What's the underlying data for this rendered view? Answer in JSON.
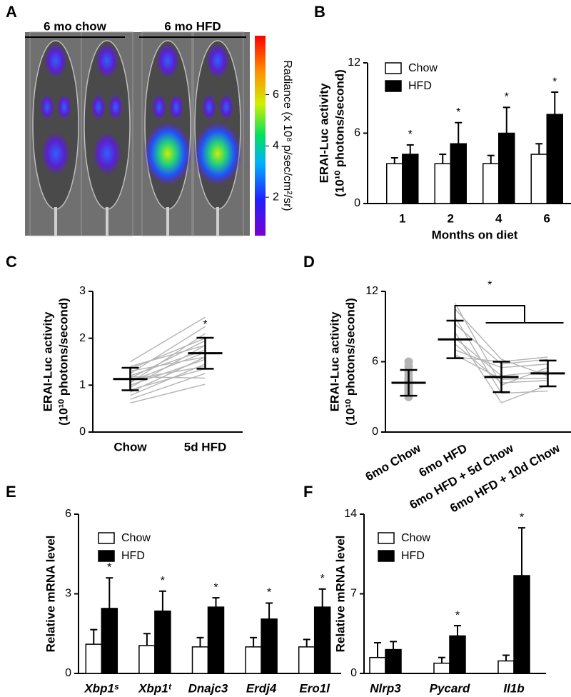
{
  "chart_data": [
    {
      "type": "image",
      "panel": "A",
      "labels": [
        "6 mo chow",
        "6 mo HFD"
      ],
      "colorbar": {
        "label": "Radiance (x 10⁸ p/sec/cm²/sr)",
        "lim": [
          0.5,
          8.3
        ],
        "ticks": [
          2,
          4,
          6
        ]
      }
    },
    {
      "type": "bar",
      "panel": "B",
      "ylabel": [
        "ERAI-Luc activity",
        "(10¹⁰ photons/second)"
      ],
      "xlabel": "Months on diet",
      "categories": [
        "1",
        "2",
        "4",
        "6"
      ],
      "series": [
        {
          "name": "Chow",
          "color": "#ffffff",
          "values": [
            3.4,
            3.4,
            3.4,
            4.2
          ],
          "errors": [
            0.5,
            0.8,
            0.7,
            0.9
          ]
        },
        {
          "name": "HFD",
          "color": "#000000",
          "values": [
            4.2,
            5.1,
            6.0,
            7.6
          ],
          "errors": [
            0.8,
            1.8,
            2.2,
            1.9
          ],
          "markers": [
            "*",
            "*",
            "*",
            "*"
          ]
        }
      ],
      "ylim": [
        0,
        12
      ],
      "yticks": [
        0,
        6,
        12
      ],
      "legend": "upper left",
      "italic_categories": false
    },
    {
      "type": "paired",
      "panel": "C",
      "ylabel": [
        "ERAI-Luc activity",
        "(10¹⁰ photons/second)"
      ],
      "categories": [
        "Chow",
        "5d HFD"
      ],
      "mean": [
        1.13,
        1.68
      ],
      "sd": [
        0.24,
        0.33
      ],
      "color": "#b4b4b4",
      "individuals": [
        [
          0.62,
          1.02
        ],
        [
          0.7,
          1.25
        ],
        [
          0.78,
          1.45
        ],
        [
          0.85,
          1.6
        ],
        [
          0.9,
          1.35
        ],
        [
          0.95,
          1.85
        ],
        [
          1.0,
          1.55
        ],
        [
          1.05,
          2.1
        ],
        [
          1.08,
          1.7
        ],
        [
          1.12,
          1.4
        ],
        [
          1.15,
          1.95
        ],
        [
          1.2,
          1.75
        ],
        [
          1.25,
          2.25
        ],
        [
          1.3,
          1.6
        ],
        [
          1.35,
          2.0
        ],
        [
          1.4,
          1.85
        ],
        [
          1.5,
          2.45
        ],
        [
          1.18,
          1.15
        ]
      ],
      "markers": [
        null,
        "*"
      ],
      "ylim": [
        0,
        3
      ],
      "yticks": [
        0,
        1,
        2,
        3
      ]
    },
    {
      "type": "paired",
      "panel": "D",
      "ylabel": [
        "ERAI-Luc activity",
        "(10¹⁰ photons/second)"
      ],
      "categories": [
        "6mo Chow",
        "6mo HFD",
        "6mo HFD + 5d Chow",
        "6mo HFD + 10d Chow"
      ],
      "mean": [
        4.2,
        7.9,
        4.7,
        5.0
      ],
      "sd": [
        1.1,
        1.6,
        1.3,
        1.1
      ],
      "color": "#b4b4b4",
      "individuals": [
        [
          3.0,
          null,
          null,
          null
        ],
        [
          3.2,
          null,
          null,
          null
        ],
        [
          3.3,
          null,
          null,
          null
        ],
        [
          3.5,
          null,
          null,
          null
        ],
        [
          3.6,
          null,
          null,
          null
        ],
        [
          3.8,
          null,
          null,
          null
        ],
        [
          4.0,
          null,
          null,
          null
        ],
        [
          4.2,
          null,
          null,
          null
        ],
        [
          4.4,
          null,
          null,
          null
        ],
        [
          4.6,
          null,
          null,
          null
        ],
        [
          4.9,
          null,
          null,
          null
        ],
        [
          5.2,
          null,
          null,
          null
        ],
        [
          5.6,
          null,
          null,
          null
        ],
        [
          6.0,
          null,
          null,
          null
        ],
        [
          null,
          11.0,
          4.0,
          5.5
        ],
        [
          null,
          10.5,
          6.2,
          4.8
        ],
        [
          null,
          9.8,
          3.3,
          3.5
        ],
        [
          null,
          9.2,
          5.8,
          6.2
        ],
        [
          null,
          8.5,
          2.5,
          4.0
        ],
        [
          null,
          8.0,
          4.8,
          5.2
        ],
        [
          null,
          7.5,
          4.2,
          4.4
        ],
        [
          null,
          7.0,
          5.5,
          5.8
        ],
        [
          null,
          6.6,
          4.5,
          4.6
        ],
        [
          null,
          6.4,
          6.0,
          6.4
        ]
      ],
      "annotation": "*",
      "ylim": [
        0,
        12
      ],
      "yticks": [
        0,
        6,
        12
      ]
    },
    {
      "type": "bar",
      "panel": "E",
      "ylabel": [
        "Relative mRNA level"
      ],
      "categories": [
        "Xbp1ˢ",
        "Xbp1ᵗ",
        "Dnajc3",
        "Erdj4",
        "Ero1l"
      ],
      "series": [
        {
          "name": "Chow",
          "color": "#ffffff",
          "values": [
            1.1,
            1.05,
            1.0,
            1.0,
            1.0
          ],
          "errors": [
            0.55,
            0.45,
            0.35,
            0.35,
            0.28
          ]
        },
        {
          "name": "HFD",
          "color": "#000000",
          "values": [
            2.45,
            2.35,
            2.5,
            2.05,
            2.5
          ],
          "errors": [
            1.15,
            0.75,
            0.35,
            0.6,
            0.68
          ],
          "markers": [
            "*",
            "*",
            "*",
            "*",
            "*"
          ]
        }
      ],
      "ylim": [
        0,
        6
      ],
      "yticks": [
        0,
        3,
        6
      ],
      "legend": "upper left",
      "italic_categories": true
    },
    {
      "type": "bar",
      "panel": "F",
      "ylabel": [
        "Relative mRNA level"
      ],
      "categories": [
        "Nlrp3",
        "Pycard",
        "Il1b"
      ],
      "series": [
        {
          "name": "Chow",
          "color": "#ffffff",
          "values": [
            1.4,
            0.9,
            1.1
          ],
          "errors": [
            1.3,
            0.5,
            0.5
          ]
        },
        {
          "name": "HFD",
          "color": "#000000",
          "values": [
            2.1,
            3.3,
            8.6
          ],
          "errors": [
            0.7,
            0.9,
            4.2
          ],
          "markers": [
            null,
            "*",
            "*"
          ]
        }
      ],
      "ylim": [
        0,
        14
      ],
      "yticks": [
        0,
        7,
        14
      ],
      "legend": "upper left",
      "italic_categories": true
    }
  ]
}
